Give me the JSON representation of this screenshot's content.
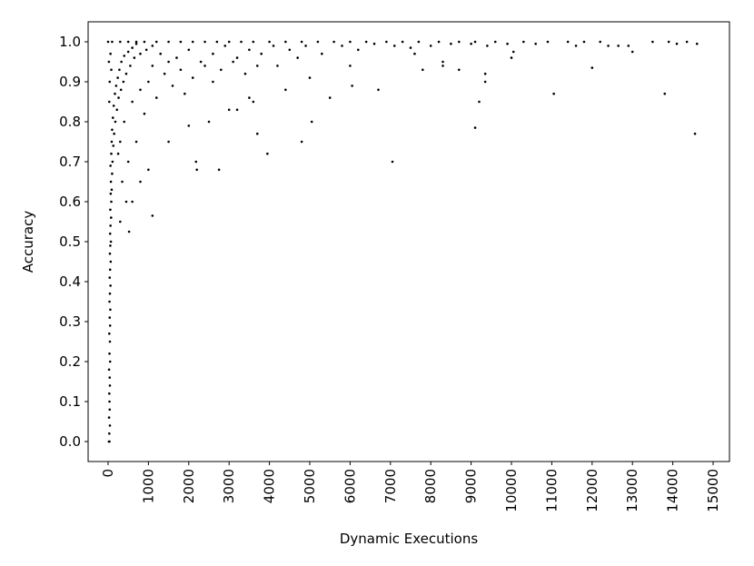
{
  "chart_data": {
    "type": "scatter",
    "color": "#000000",
    "x_label": "Dynamic Executions",
    "y_label": "Accuracy",
    "xlim": [
      -495,
      15405
    ],
    "ylim": [
      -0.05,
      1.05
    ],
    "xticks": [
      0,
      1000,
      2000,
      3000,
      4000,
      5000,
      6000,
      7000,
      8000,
      9000,
      10000,
      11000,
      12000,
      13000,
      14000,
      15000
    ],
    "yticks": [
      {
        "value": 0,
        "label": "0.0"
      },
      {
        "value": 0.1,
        "label": "0.1"
      },
      {
        "value": 0.2,
        "label": "0.2"
      },
      {
        "value": 0.3,
        "label": "0.3"
      },
      {
        "value": 0.4,
        "label": "0.4"
      },
      {
        "value": 0.5,
        "label": "0.5"
      },
      {
        "value": 0.6,
        "label": "0.6"
      },
      {
        "value": 0.7,
        "label": "0.7"
      },
      {
        "value": 0.8,
        "label": "0.8"
      },
      {
        "value": 0.9,
        "label": "0.9"
      },
      {
        "value": 1,
        "label": "1.0"
      }
    ],
    "x": [
      20,
      35,
      30,
      45,
      25,
      40,
      35,
      30,
      45,
      40,
      25,
      50,
      35,
      45,
      30,
      50,
      40,
      55,
      35,
      45,
      60,
      40,
      50,
      65,
      45,
      55,
      70,
      50,
      60,
      75,
      55,
      80,
      65,
      90,
      70,
      100,
      60,
      110,
      80,
      130,
      90,
      150,
      100,
      180,
      120,
      220,
      140,
      260,
      170,
      320,
      200,
      380,
      240,
      450,
      280,
      550,
      330,
      650,
      400,
      800,
      500,
      950,
      600,
      1100,
      700,
      60,
      80,
      30,
      40,
      20,
      0,
      100,
      300,
      500,
      700,
      900,
      1200,
      1500,
      1800,
      2100,
      2400,
      2700,
      3000,
      3300,
      3600,
      4000,
      4400,
      4800,
      5200,
      5600,
      6000,
      6400,
      6900,
      7300,
      7700,
      8200,
      8700,
      9100,
      9600,
      10300,
      10900,
      11400,
      11800,
      12200,
      13500,
      13900,
      14350,
      1300,
      1700,
      2000,
      2300,
      2600,
      2900,
      3200,
      3500,
      3800,
      4100,
      4500,
      4900,
      5300,
      5800,
      6200,
      6600,
      7100,
      7500,
      8000,
      8500,
      9000,
      9400,
      9900,
      10600,
      11600,
      12400,
      12900,
      14600,
      14100,
      12650,
      400,
      600,
      700,
      900,
      500,
      800,
      1000,
      1200,
      1400,
      1600,
      1800,
      1900,
      2100,
      2400,
      2600,
      2800,
      3100,
      3400,
      1500,
      1100,
      300,
      350,
      250,
      450,
      300,
      1100,
      520,
      2200,
      2180,
      2750,
      3950,
      4800,
      5050,
      3700,
      7050,
      9100,
      9200,
      11050,
      13800,
      14550,
      5500,
      6050,
      6700,
      12000,
      13000,
      9350,
      9350,
      8300,
      8300,
      7800,
      8700,
      10000,
      10050,
      7600,
      6000,
      5000,
      4400,
      4200,
      3500,
      3000,
      3200,
      2500,
      2000,
      1500,
      1000,
      800,
      600,
      3700,
      4700,
      3600
    ],
    "values": [
      0,
      0,
      0.02,
      0.04,
      0.06,
      0.08,
      0.1,
      0.12,
      0.14,
      0.16,
      0.18,
      0.2,
      0.22,
      0.25,
      0.27,
      0.29,
      0.31,
      0.33,
      0.35,
      0.37,
      0.39,
      0.41,
      0.43,
      0.45,
      0.47,
      0.49,
      0.5,
      0.52,
      0.54,
      0.56,
      0.58,
      0.6,
      0.62,
      0.63,
      0.65,
      0.67,
      0.69,
      0.7,
      0.72,
      0.74,
      0.75,
      0.77,
      0.78,
      0.8,
      0.81,
      0.83,
      0.84,
      0.86,
      0.87,
      0.88,
      0.89,
      0.9,
      0.91,
      0.92,
      0.93,
      0.94,
      0.95,
      0.96,
      0.965,
      0.97,
      0.975,
      0.98,
      0.985,
      0.99,
      0.995,
      0.97,
      0.93,
      0.85,
      0.9,
      0.95,
      1,
      1,
      1,
      1,
      1,
      1,
      1,
      1,
      1,
      1,
      1,
      1,
      1,
      1,
      1,
      1,
      1,
      1,
      1,
      1,
      1,
      1,
      1,
      1,
      1,
      1,
      1,
      1,
      1,
      1,
      1,
      1,
      1,
      1,
      1,
      1,
      1,
      0.97,
      0.96,
      0.98,
      0.95,
      0.97,
      0.99,
      0.96,
      0.98,
      0.97,
      0.99,
      0.98,
      0.99,
      0.97,
      0.99,
      0.98,
      0.995,
      0.99,
      0.985,
      0.99,
      0.995,
      0.995,
      0.99,
      0.995,
      0.995,
      0.99,
      0.99,
      0.99,
      0.995,
      0.995,
      0.99,
      0.8,
      0.85,
      0.75,
      0.82,
      0.7,
      0.88,
      0.9,
      0.86,
      0.92,
      0.89,
      0.93,
      0.87,
      0.91,
      0.94,
      0.9,
      0.93,
      0.95,
      0.92,
      0.95,
      0.94,
      0.75,
      0.65,
      0.72,
      0.6,
      0.55,
      0.565,
      0.525,
      0.68,
      0.7,
      0.68,
      0.72,
      0.75,
      0.8,
      0.77,
      0.7,
      0.785,
      0.85,
      0.87,
      0.87,
      0.77,
      0.86,
      0.89,
      0.88,
      0.935,
      0.975,
      0.9,
      0.92,
      0.94,
      0.95,
      0.93,
      0.93,
      0.96,
      0.975,
      0.97,
      0.94,
      0.91,
      0.88,
      0.94,
      0.86,
      0.83,
      0.83,
      0.8,
      0.79,
      0.75,
      0.68,
      0.65,
      0.6,
      0.94,
      0.96,
      0.85
    ]
  }
}
